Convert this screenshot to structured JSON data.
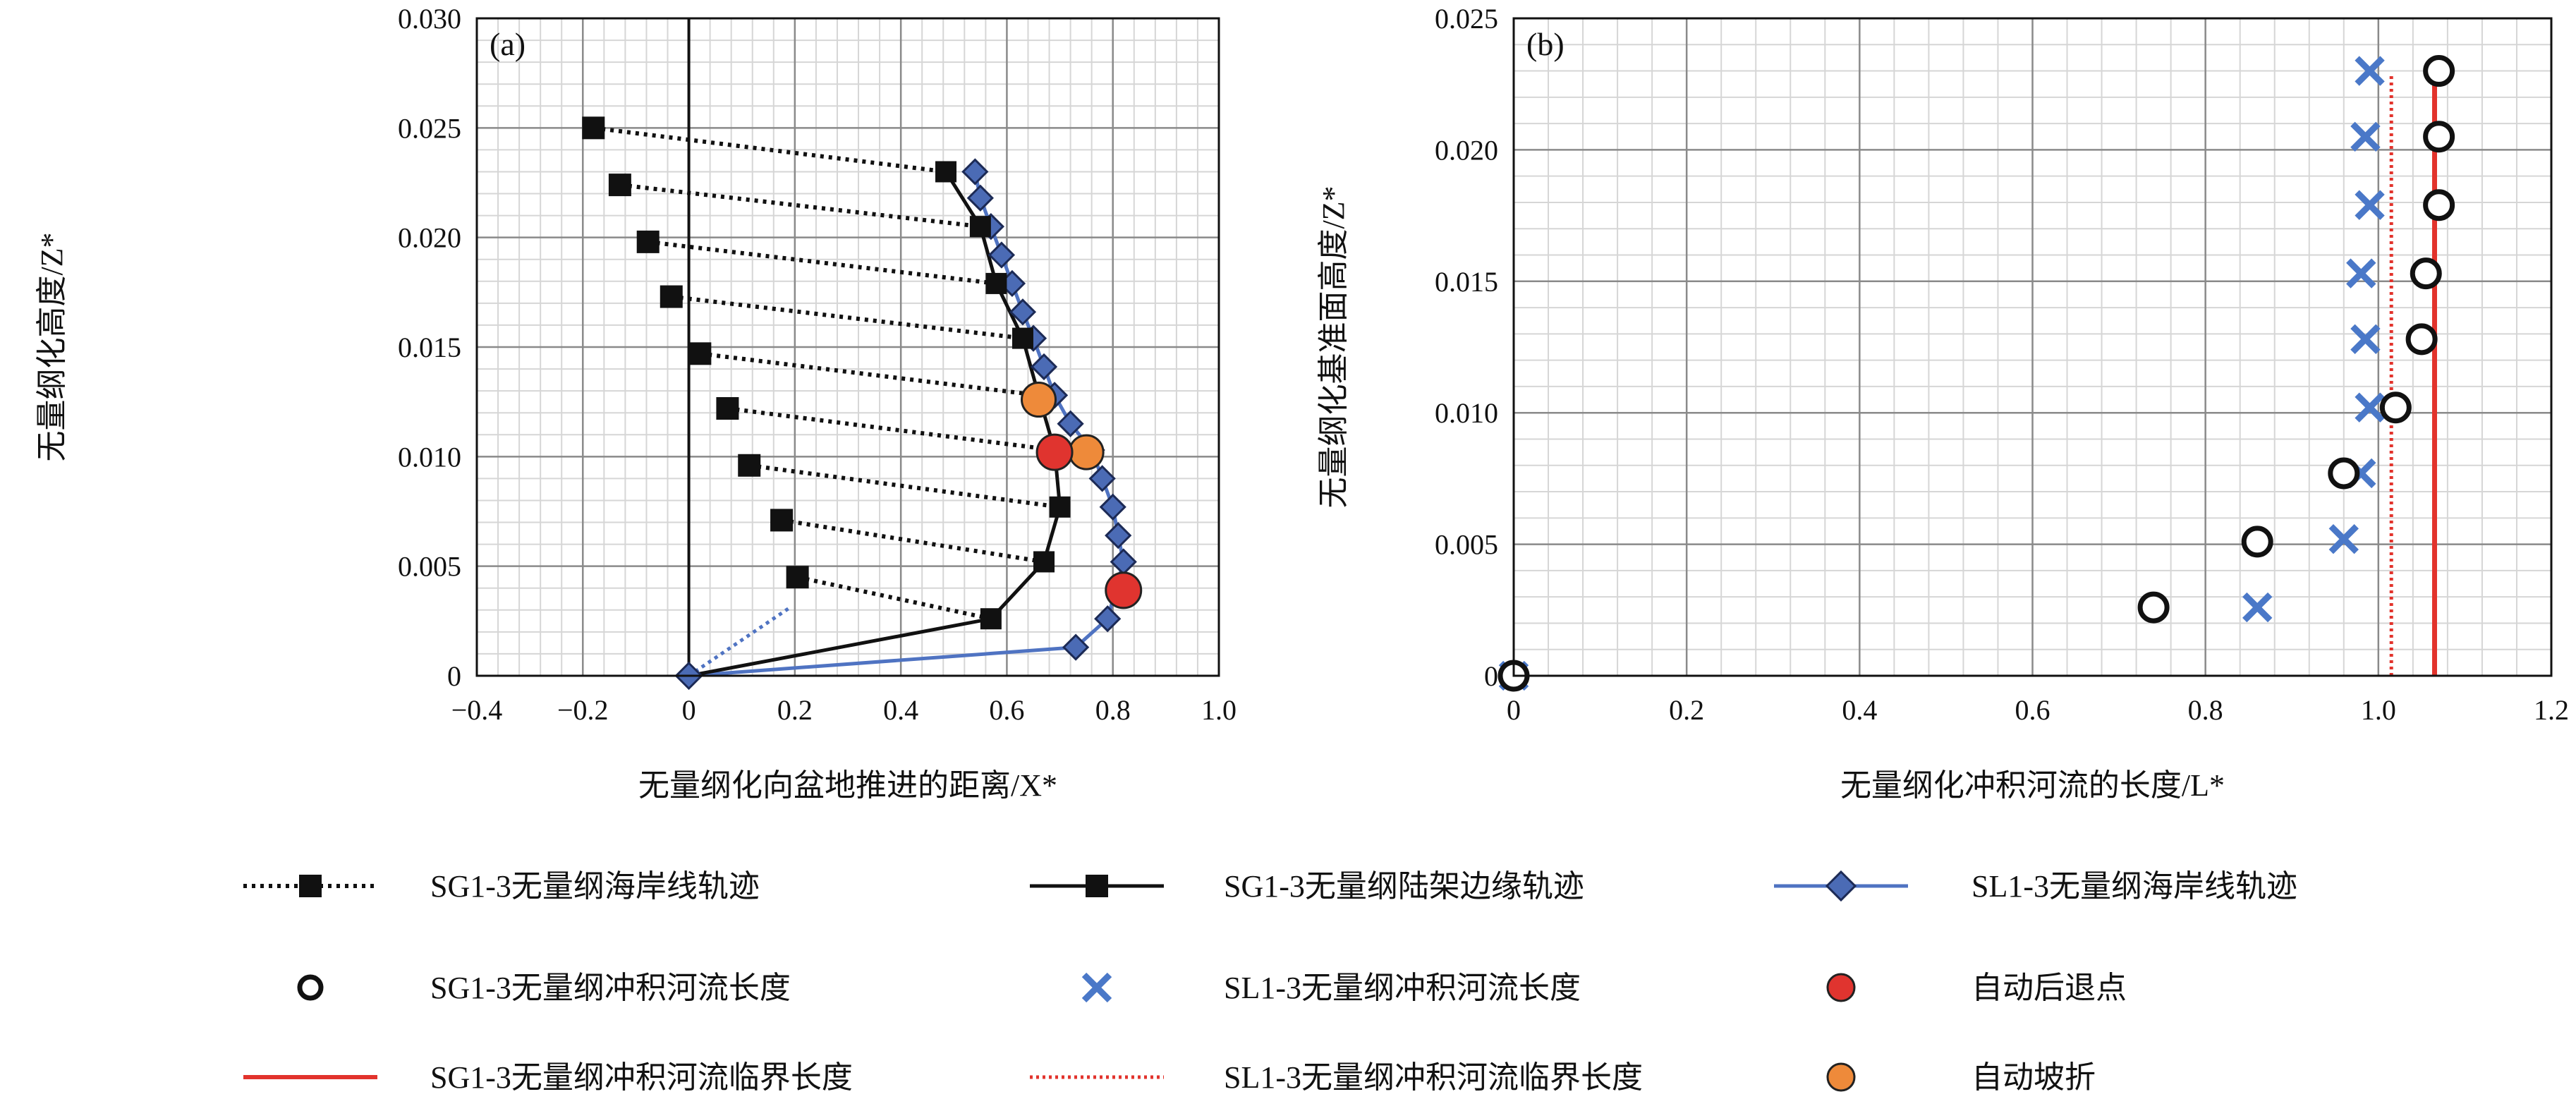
{
  "chart_data": [
    {
      "type": "line",
      "panel_label": "(a)",
      "xlabel": "无量纲化向盆地推进的距离/X*",
      "ylabel": "无量纲化高度/Z*",
      "xlim": [
        -0.4,
        1.0
      ],
      "ylim": [
        0,
        0.03
      ],
      "x_ticks": [
        "−0.4",
        "−0.2",
        "0",
        "0.2",
        "0.4",
        "0.6",
        "0.8",
        "1.0"
      ],
      "y_ticks": [
        "0",
        "0.005",
        "0.010",
        "0.015",
        "0.020",
        "0.025",
        "0.030"
      ],
      "grid": true,
      "vertical_zero_line": true,
      "series": [
        {
          "name": "SG1-3无量纲海岸线轨迹",
          "style": "dotted-black-square",
          "points": [
            [
              0,
              0
            ],
            [
              0.205,
              0.0045
            ],
            [
              0.175,
              0.0071
            ],
            [
              0.114,
              0.0096
            ],
            [
              0.073,
              0.0122
            ],
            [
              0.021,
              0.0147
            ],
            [
              -0.033,
              0.0173
            ],
            [
              -0.077,
              0.0198
            ],
            [
              -0.13,
              0.0224
            ],
            [
              -0.18,
              0.025
            ]
          ]
        },
        {
          "name": "SG1-3无量纲陆架边缘轨迹",
          "style": "solid-black-square",
          "points": [
            [
              0,
              0
            ],
            [
              0.57,
              0.0026
            ],
            [
              0.67,
              0.0052
            ],
            [
              0.7,
              0.0077
            ],
            [
              0.69,
              0.0103
            ],
            [
              0.66,
              0.0128
            ],
            [
              0.63,
              0.0154
            ],
            [
              0.58,
              0.0179
            ],
            [
              0.55,
              0.0205
            ],
            [
              0.485,
              0.023
            ]
          ]
        },
        {
          "name": "SL1-3无量纲海岸线轨迹",
          "style": "solid-blue-diamond",
          "points": [
            [
              0,
              0
            ],
            [
              0.73,
              0.0013
            ],
            [
              0.79,
              0.0026
            ],
            [
              0.82,
              0.0052
            ],
            [
              0.81,
              0.0064
            ],
            [
              0.8,
              0.0077
            ],
            [
              0.78,
              0.009
            ],
            [
              0.76,
              0.0103
            ],
            [
              0.72,
              0.0115
            ],
            [
              0.69,
              0.0128
            ],
            [
              0.67,
              0.0141
            ],
            [
              0.65,
              0.0154
            ],
            [
              0.63,
              0.0166
            ],
            [
              0.61,
              0.0179
            ],
            [
              0.59,
              0.0192
            ],
            [
              0.57,
              0.0205
            ],
            [
              0.55,
              0.0218
            ],
            [
              0.54,
              0.023
            ]
          ]
        },
        {
          "name": "SL1-3 dotted segment",
          "style": "dotted-blue",
          "points": [
            [
              0,
              0
            ],
            [
              0.19,
              0.0031
            ]
          ]
        },
        {
          "name": "自动后退点",
          "style": "red-dot",
          "points": [
            [
              0.69,
              0.0102
            ],
            [
              0.82,
              0.0039
            ]
          ]
        },
        {
          "name": "自动坡折",
          "style": "orange-dot",
          "points": [
            [
              0.66,
              0.0126
            ],
            [
              0.75,
              0.0102
            ]
          ]
        }
      ],
      "connector_pairs": [
        [
          [
            -0.18,
            0.025
          ],
          [
            0.485,
            0.023
          ]
        ],
        [
          [
            -0.13,
            0.0224
          ],
          [
            0.55,
            0.0205
          ]
        ],
        [
          [
            -0.077,
            0.0198
          ],
          [
            0.58,
            0.0179
          ]
        ],
        [
          [
            -0.033,
            0.0173
          ],
          [
            0.63,
            0.0154
          ]
        ],
        [
          [
            0.021,
            0.0147
          ],
          [
            0.66,
            0.0128
          ]
        ],
        [
          [
            0.073,
            0.0122
          ],
          [
            0.69,
            0.0103
          ]
        ],
        [
          [
            0.114,
            0.0096
          ],
          [
            0.7,
            0.0077
          ]
        ],
        [
          [
            0.175,
            0.0071
          ],
          [
            0.67,
            0.0052
          ]
        ],
        [
          [
            0.205,
            0.0045
          ],
          [
            0.57,
            0.0026
          ]
        ]
      ]
    },
    {
      "type": "scatter",
      "panel_label": "(b)",
      "xlabel": "无量纲化冲积河流的长度/L*",
      "ylabel": "无量纲化基准面高度/Z*",
      "xlim": [
        0,
        1.2
      ],
      "ylim": [
        0,
        0.025
      ],
      "x_ticks": [
        "0",
        "0.2",
        "0.4",
        "0.6",
        "0.8",
        "1.0",
        "1.2"
      ],
      "y_ticks": [
        "0",
        "0.005",
        "0.010",
        "0.015",
        "0.020",
        "0.025"
      ],
      "grid": true,
      "series": [
        {
          "name": "SG1-3无量纲冲积河流长度",
          "style": "open-circle",
          "points": [
            [
              0,
              0
            ],
            [
              0.74,
              0.0026
            ],
            [
              0.86,
              0.0051
            ],
            [
              0.96,
              0.0077
            ],
            [
              1.02,
              0.0102
            ],
            [
              1.05,
              0.0128
            ],
            [
              1.055,
              0.0153
            ],
            [
              1.07,
              0.0179
            ],
            [
              1.07,
              0.0205
            ],
            [
              1.07,
              0.023
            ]
          ]
        },
        {
          "name": "SL1-3无量纲冲积河流长度",
          "style": "blue-x",
          "points": [
            [
              0,
              0
            ],
            [
              0.86,
              0.0026
            ],
            [
              0.96,
              0.0052
            ],
            [
              0.98,
              0.0077
            ],
            [
              0.99,
              0.0102
            ],
            [
              0.985,
              0.0128
            ],
            [
              0.98,
              0.0153
            ],
            [
              0.99,
              0.0179
            ],
            [
              0.985,
              0.0205
            ],
            [
              0.99,
              0.023
            ]
          ]
        },
        {
          "name": "SG1-3无量纲冲积河流临界长度",
          "style": "solid-red-vline",
          "x": 1.065,
          "y_range": [
            0,
            0.0233
          ]
        },
        {
          "name": "SL1-3无量纲冲积河流临界长度",
          "style": "dotted-red-vline",
          "x": 1.015,
          "y_range": [
            0,
            0.0228
          ]
        }
      ]
    }
  ],
  "legend": {
    "rows": [
      [
        {
          "label": "SG1-3无量纲海岸线轨迹",
          "symbol": "dotted-black-square"
        },
        {
          "label": "SG1-3无量纲陆架边缘轨迹",
          "symbol": "solid-black-square"
        },
        {
          "label": "SL1-3无量纲海岸线轨迹",
          "symbol": "solid-blue-diamond"
        }
      ],
      [
        {
          "label": "SG1-3无量纲冲积河流长度",
          "symbol": "open-circle"
        },
        {
          "label": "SL1-3无量纲冲积河流长度",
          "symbol": "blue-x"
        },
        {
          "label": "自动后退点",
          "symbol": "red-dot"
        }
      ],
      [
        {
          "label": "SG1-3无量纲冲积河流临界长度",
          "symbol": "solid-red-line"
        },
        {
          "label": "SL1-3无量纲冲积河流临界长度",
          "symbol": "dotted-red-line"
        },
        {
          "label": "自动坡折",
          "symbol": "orange-dot"
        }
      ]
    ]
  },
  "colors": {
    "black": "#111111",
    "blue_line": "#4f73c2",
    "diamond_fill": "#4b6bb5",
    "blue_x": "#4a78c8",
    "red": "#e0342f",
    "red_line": "#e2332c",
    "orange": "#ee8a3a",
    "grid_major": "#8a8a8a",
    "grid_minor": "#d6d6d6"
  }
}
